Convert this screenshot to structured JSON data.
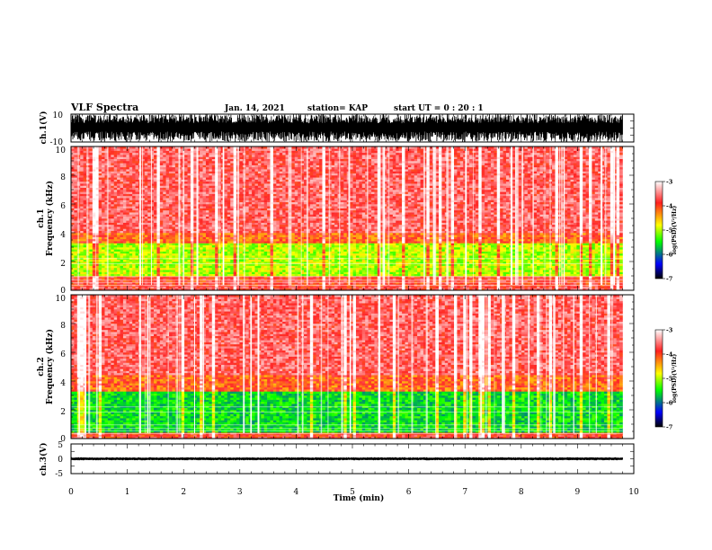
{
  "header": {
    "title": "VLF Spectra",
    "date": "Jan. 14, 2021",
    "station": "station= KAP",
    "start_ut": "start UT =   0 : 20 : 1"
  },
  "axes": {
    "xlabel": "Time  (min)",
    "xticks": [
      "0",
      "1",
      "2",
      "3",
      "4",
      "5",
      "6",
      "7",
      "8",
      "9",
      "10"
    ],
    "ch1_wave_label": "ch.1(V)",
    "ch1_wave_ticks": [
      "10",
      "-10"
    ],
    "ch1_spec_label_1": "ch.1",
    "ch1_spec_label_2": "Frequency  (kHz)",
    "ch2_spec_label_1": "ch.2",
    "ch2_spec_label_2": "Frequency  (kHz)",
    "freq_ticks": [
      "10",
      "8",
      "6",
      "4",
      "2",
      "0"
    ],
    "ch3_wave_label": "ch.3(V)",
    "ch3_wave_ticks": [
      "5",
      "0",
      "-5"
    ]
  },
  "colorbar": {
    "label": "log(PSD)(V²/Hz)",
    "ticks": [
      "-3",
      "-4",
      "-5",
      "-6",
      "-7"
    ],
    "colors": [
      "#ffffff",
      "#ff3030",
      "#ffff00",
      "#00ff00",
      "#0000ff",
      "#000000"
    ]
  },
  "chart_data": [
    {
      "type": "line",
      "title": "ch.1(V)",
      "xlabel": "Time (min)",
      "ylabel": "ch.1(V)",
      "xlim": [
        0,
        10
      ],
      "ylim": [
        -10,
        10
      ],
      "data_extent_min": 9.8,
      "series": [
        {
          "name": "ch.1",
          "envelope": [
            -10,
            10
          ]
        }
      ]
    },
    {
      "type": "heatmap",
      "title": "ch.1",
      "xlabel": "Time (min)",
      "ylabel": "Frequency (kHz)",
      "xlim": [
        0,
        10
      ],
      "ylim": [
        0,
        10
      ],
      "zlabel": "log(PSD)(V²/Hz)",
      "zlim": [
        -7,
        -3
      ],
      "data_extent_min": 9.8,
      "bands": [
        {
          "freq_range_khz": [
            4,
            10
          ],
          "level": -3.6
        },
        {
          "freq_range_khz": [
            3.3,
            4
          ],
          "level": -4
        },
        {
          "freq_range_khz": [
            1.0,
            3.3
          ],
          "level": -4.8
        },
        {
          "freq_range_khz": [
            0.3,
            1.0
          ],
          "level": -3.8
        }
      ]
    },
    {
      "type": "heatmap",
      "title": "ch.2",
      "xlabel": "Time (min)",
      "ylabel": "Frequency (kHz)",
      "xlim": [
        0,
        10
      ],
      "ylim": [
        0,
        10
      ],
      "zlabel": "log(PSD)(V²/Hz)",
      "zlim": [
        -7,
        -3
      ],
      "data_extent_min": 9.8,
      "bands": [
        {
          "freq_range_khz": [
            4.5,
            10
          ],
          "level": -3.6
        },
        {
          "freq_range_khz": [
            3.3,
            4.5
          ],
          "level": -4
        },
        {
          "freq_range_khz": [
            0.4,
            3.3
          ],
          "level": -5.4
        },
        {
          "freq_range_khz": [
            0,
            0.4
          ],
          "level": -3.8
        }
      ]
    },
    {
      "type": "line",
      "title": "ch.3(V)",
      "xlabel": "Time (min)",
      "ylabel": "ch.3(V)",
      "xlim": [
        0,
        10
      ],
      "ylim": [
        -5,
        5
      ],
      "data_extent_min": 9.8,
      "series": [
        {
          "name": "ch.3",
          "envelope": [
            -0.5,
            0.5
          ],
          "offset": 0
        }
      ]
    }
  ]
}
